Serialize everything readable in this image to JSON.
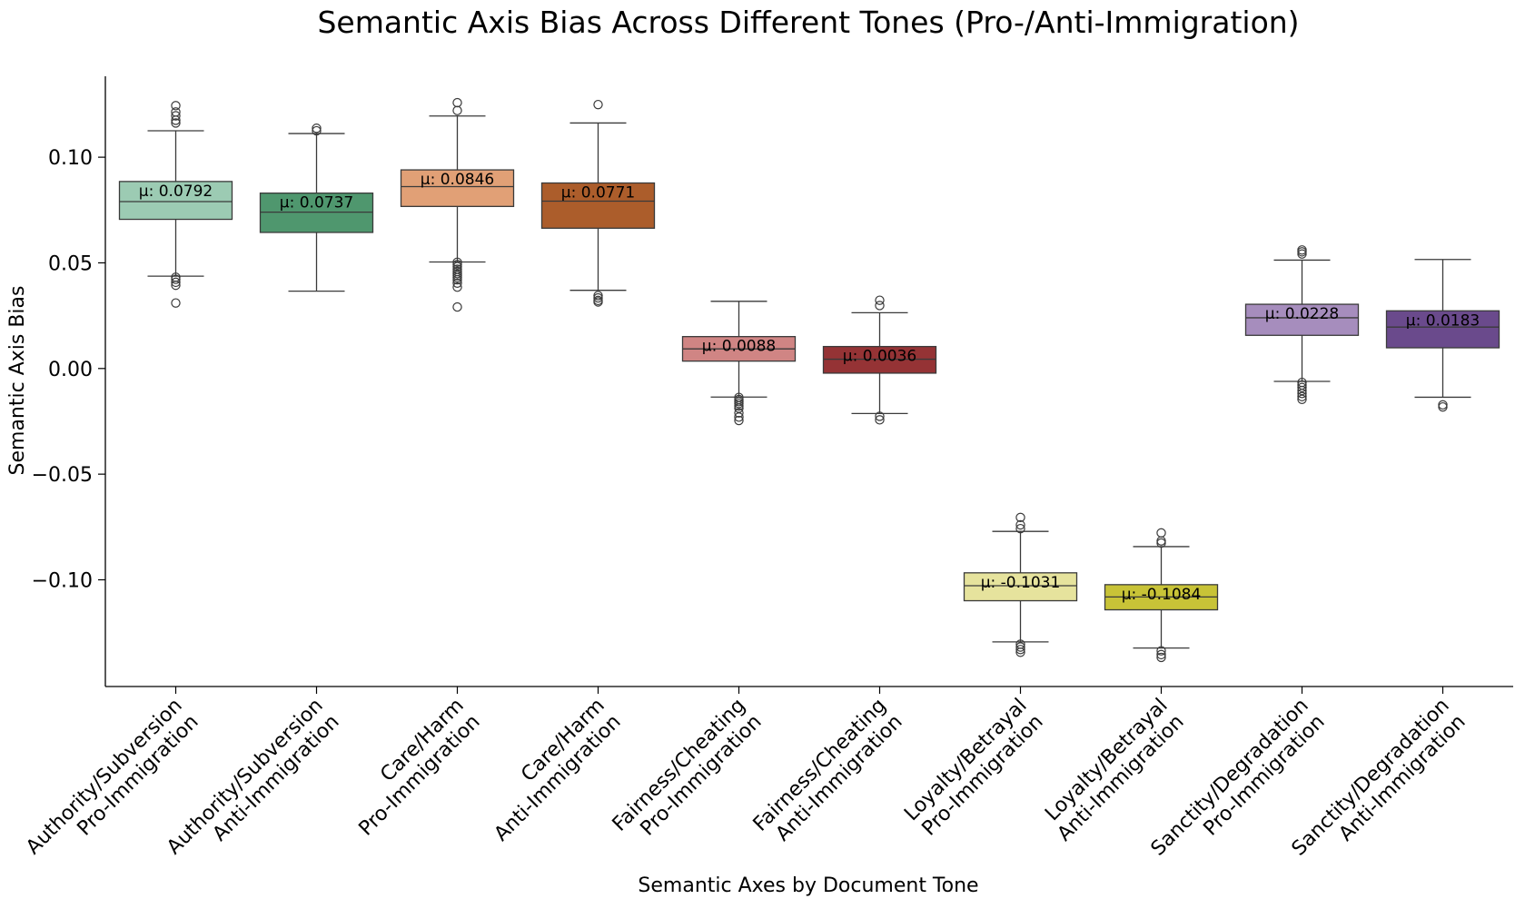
{
  "chart_data": {
    "type": "box",
    "title": "Semantic Axis Bias Across Different Tones (Pro-/Anti-Immigration)",
    "xlabel": "Semantic Axes by Document Tone",
    "ylabel": "Semantic Axis Bias",
    "ylim": [
      -0.1505,
      0.1383
    ],
    "yticks": [
      0.1,
      0.05,
      0.0,
      -0.05,
      -0.1
    ],
    "ytick_labels": [
      "0.10",
      "0.05",
      "0.00",
      "−0.05",
      "−0.10"
    ],
    "mean_prefix": "µ: ",
    "categories": [
      {
        "lines": [
          "Authority/Subversion",
          "Pro-Immigration"
        ],
        "color": "#9ccbb3",
        "q1": 0.0706,
        "median": 0.079,
        "q3": 0.0885,
        "whisker_low": 0.0437,
        "whisker_high": 0.1125,
        "mean_label": "0.0792",
        "outliers": [
          0.1244,
          0.1214,
          0.1196,
          0.1175,
          0.1162,
          0.0432,
          0.0422,
          0.0408,
          0.0394,
          0.031
        ]
      },
      {
        "lines": [
          "Authority/Subversion",
          "Anti-Immigration"
        ],
        "color": "#4f976e",
        "q1": 0.0644,
        "median": 0.074,
        "q3": 0.083,
        "whisker_low": 0.0366,
        "whisker_high": 0.1112,
        "mean_label": "0.0737",
        "outliers": [
          0.1137,
          0.1125
        ]
      },
      {
        "lines": [
          "Care/Harm",
          "Pro-Immigration"
        ],
        "color": "#e1a076",
        "q1": 0.0767,
        "median": 0.0861,
        "q3": 0.094,
        "whisker_low": 0.0504,
        "whisker_high": 0.1195,
        "mean_label": "0.0846",
        "outliers": [
          0.1258,
          0.1221,
          0.0503,
          0.0492,
          0.0482,
          0.047,
          0.0459,
          0.0449,
          0.044,
          0.043,
          0.042,
          0.0404,
          0.0385,
          0.0291
        ]
      },
      {
        "lines": [
          "Care/Harm",
          "Anti-Immigration"
        ],
        "color": "#ac5d2b",
        "q1": 0.0664,
        "median": 0.0792,
        "q3": 0.0878,
        "whisker_low": 0.037,
        "whisker_high": 0.1162,
        "mean_label": "0.0771",
        "outliers": [
          0.1249,
          0.0345,
          0.0334,
          0.0322,
          0.0315
        ]
      },
      {
        "lines": [
          "Fairness/Cheating",
          "Pro-Immigration"
        ],
        "color": "#d08584",
        "q1": 0.0035,
        "median": 0.0093,
        "q3": 0.0151,
        "whisker_low": -0.0135,
        "whisker_high": 0.0318,
        "mean_label": "0.0088",
        "outliers": [
          -0.0137,
          -0.0147,
          -0.0157,
          -0.0166,
          -0.0177,
          -0.0188,
          -0.021,
          -0.023,
          -0.0246
        ]
      },
      {
        "lines": [
          "Fairness/Cheating",
          "Anti-Immigration"
        ],
        "color": "#953335",
        "q1": -0.0022,
        "median": 0.0044,
        "q3": 0.0104,
        "whisker_low": -0.0213,
        "whisker_high": 0.0264,
        "mean_label": "0.0036",
        "outliers": [
          0.0323,
          0.0298,
          -0.0226,
          -0.0243
        ]
      },
      {
        "lines": [
          "Loyalty/Betrayal",
          "Pro-Immigration"
        ],
        "color": "#e6e39d",
        "q1": -0.1099,
        "median": -0.1028,
        "q3": -0.0967,
        "whisker_low": -0.1294,
        "whisker_high": -0.0771,
        "mean_label": "-0.1031",
        "outliers": [
          -0.0705,
          -0.074,
          -0.0758,
          -0.1305,
          -0.1318,
          -0.133,
          -0.1343
        ]
      },
      {
        "lines": [
          "Loyalty/Betrayal",
          "Anti-Immigration"
        ],
        "color": "#c8c337",
        "q1": -0.1142,
        "median": -0.1081,
        "q3": -0.1023,
        "whisker_low": -0.1323,
        "whisker_high": -0.0843,
        "mean_label": "-0.1084",
        "outliers": [
          -0.0778,
          -0.0816,
          -0.0826,
          -0.1336,
          -0.1354,
          -0.1367
        ]
      },
      {
        "lines": [
          "Sanctity/Degradation",
          "Pro-Immigration"
        ],
        "color": "#a68dbd",
        "q1": 0.0157,
        "median": 0.024,
        "q3": 0.0304,
        "whisker_low": -0.0061,
        "whisker_high": 0.0513,
        "mean_label": "0.0228",
        "outliers": [
          0.0561,
          0.0552,
          0.0542,
          -0.0066,
          -0.0078,
          -0.009,
          -0.0104,
          -0.0118,
          -0.0133,
          -0.0146
        ]
      },
      {
        "lines": [
          "Sanctity/Degradation",
          "Anti-Immigration"
        ],
        "color": "#6a4a8c",
        "q1": 0.0098,
        "median": 0.0196,
        "q3": 0.0273,
        "whisker_low": -0.0136,
        "whisker_high": 0.0516,
        "mean_label": "0.0183",
        "outliers": [
          -0.0172,
          -0.0182
        ]
      }
    ]
  }
}
